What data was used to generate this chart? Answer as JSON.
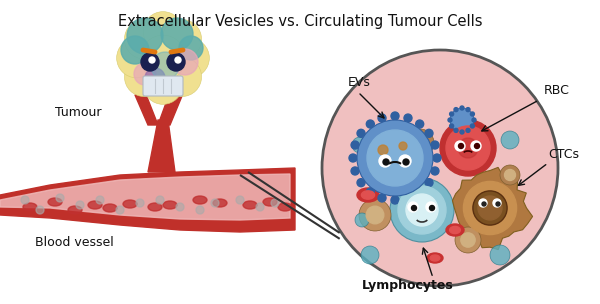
{
  "title": "Extracellular Vesicles vs. Circulating Tumour Cells",
  "title_fontsize": 10.5,
  "bg_color": "#ffffff",
  "labels": {
    "tumour": "Tumour",
    "blood_vessel": "Blood vessel",
    "evs": "EVs",
    "rbc": "RBC",
    "ctcs": "CTCs",
    "lymphocytes": "Lymphocytes"
  },
  "tumour_color": "#f0e090",
  "vessel_color_outer": "#c0302a",
  "vessel_color_inner": "#f0b8b8",
  "circle_bg": "#f0c0c0",
  "circle_edge": "#555555"
}
